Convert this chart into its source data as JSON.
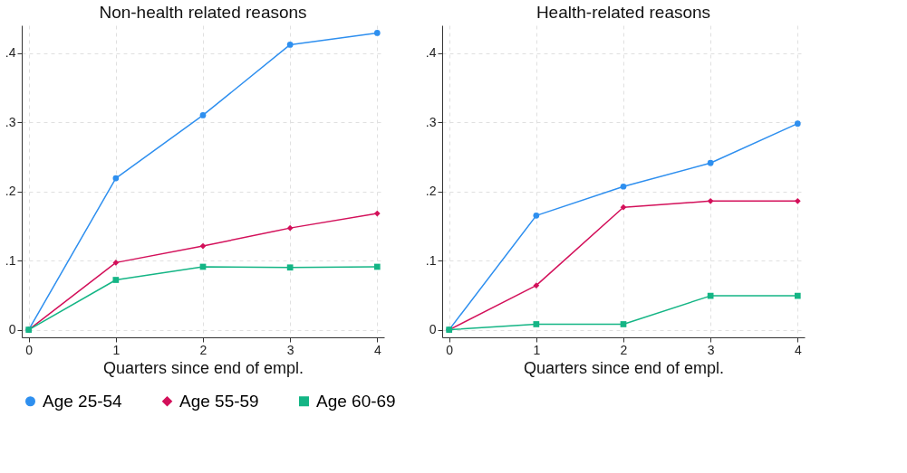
{
  "chart_data": [
    {
      "type": "line",
      "title": "Non-health related reasons",
      "xlabel": "Quarters since end of empl.",
      "x": [
        0,
        1,
        2,
        3,
        4
      ],
      "series": [
        {
          "name": "Age 25-54",
          "color": "#2e8fef",
          "marker": "circle",
          "values": [
            0,
            0.219,
            0.31,
            0.412,
            0.429
          ]
        },
        {
          "name": "Age 55-59",
          "color": "#d3105a",
          "marker": "diamond",
          "values": [
            0,
            0.097,
            0.121,
            0.147,
            0.168
          ]
        },
        {
          "name": "Age 60-69",
          "color": "#14b585",
          "marker": "square",
          "values": [
            0,
            0.072,
            0.091,
            0.09,
            0.091
          ]
        }
      ],
      "xlim": [
        -0.08,
        4.08
      ],
      "xticks": [
        0,
        1,
        2,
        3,
        4
      ],
      "ylim": [
        -0.011,
        0.44
      ],
      "yticks": [
        0,
        {
          "value": 0.1,
          "label": ".1"
        },
        {
          "value": 0.2,
          "label": ".2"
        },
        {
          "value": 0.3,
          "label": ".3"
        },
        {
          "value": 0.4,
          "label": ".4"
        }
      ],
      "grid": true,
      "legend": "bottom",
      "line_style": "solid"
    },
    {
      "type": "line",
      "title": "Health-related reasons",
      "xlabel": "Quarters since end of empl.",
      "x": [
        0,
        1,
        2,
        3,
        4
      ],
      "series": [
        {
          "name": "Age 25-54",
          "color": "#2e8fef",
          "marker": "circle",
          "values": [
            0,
            0.165,
            0.207,
            0.241,
            0.298
          ]
        },
        {
          "name": "Age 55-59",
          "color": "#d3105a",
          "marker": "diamond",
          "values": [
            0,
            0.064,
            0.177,
            0.186,
            0.186
          ]
        },
        {
          "name": "Age 60-69",
          "color": "#14b585",
          "marker": "square",
          "values": [
            0,
            0.008,
            0.008,
            0.049,
            0.049
          ]
        }
      ],
      "xlim": [
        -0.08,
        4.08
      ],
      "xticks": [
        0,
        1,
        2,
        3,
        4
      ],
      "ylim": [
        -0.011,
        0.44
      ],
      "yticks": [
        0,
        {
          "value": 0.1,
          "label": ".1"
        },
        {
          "value": 0.2,
          "label": ".2"
        },
        {
          "value": 0.3,
          "label": ".3"
        },
        {
          "value": 0.4,
          "label": ".4"
        }
      ],
      "grid": true,
      "line_style": "solid"
    }
  ]
}
